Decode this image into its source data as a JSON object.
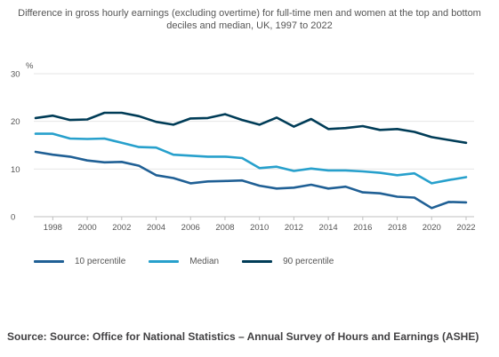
{
  "chart_data": {
    "type": "line",
    "title": "Difference in gross hourly earnings (excluding overtime) for full-time men and women at the top and bottom deciles and median, UK, 1997 to 2022",
    "xlabel": "",
    "ylabel": "%",
    "x": [
      1997,
      1998,
      1999,
      2000,
      2001,
      2002,
      2003,
      2004,
      2005,
      2006,
      2007,
      2008,
      2009,
      2010,
      2011,
      2012,
      2013,
      2014,
      2015,
      2016,
      2017,
      2018,
      2019,
      2020,
      2021,
      2022
    ],
    "xticks": [
      "1998",
      "2000",
      "2002",
      "2004",
      "2006",
      "2008",
      "2010",
      "2012",
      "2014",
      "2016",
      "2018",
      "2020",
      "2022"
    ],
    "xlim": [
      1997,
      2022
    ],
    "yticks": [
      "0",
      "10",
      "20",
      "30"
    ],
    "ylim": [
      0,
      30
    ],
    "grid": true,
    "legend_position": "bottom-left",
    "series": [
      {
        "name": "10 percentile",
        "color": "#206095",
        "values": [
          13.6,
          13.0,
          12.6,
          11.8,
          11.4,
          11.5,
          10.7,
          8.7,
          8.1,
          7.0,
          7.4,
          7.5,
          7.6,
          6.5,
          5.9,
          6.1,
          6.7,
          5.9,
          6.3,
          5.1,
          4.9,
          4.2,
          4.0,
          1.8,
          3.1,
          3.0
        ]
      },
      {
        "name": "Median",
        "color": "#27a0cc",
        "values": [
          17.4,
          17.4,
          16.4,
          16.3,
          16.4,
          15.5,
          14.6,
          14.5,
          13.0,
          12.8,
          12.6,
          12.6,
          12.3,
          10.2,
          10.5,
          9.6,
          10.1,
          9.7,
          9.7,
          9.5,
          9.2,
          8.7,
          9.1,
          7.0,
          7.7,
          8.3
        ]
      },
      {
        "name": "90 percentile",
        "color": "#003c57",
        "values": [
          20.7,
          21.2,
          20.3,
          20.4,
          21.8,
          21.8,
          21.1,
          19.9,
          19.3,
          20.6,
          20.7,
          21.5,
          20.3,
          19.3,
          20.8,
          18.9,
          20.5,
          18.4,
          18.6,
          19.0,
          18.2,
          18.4,
          17.8,
          16.7,
          16.1,
          15.5
        ]
      }
    ]
  },
  "source": "Source: Source: Office for National Statistics – Annual Survey of Hours and Earnings (ASHE)"
}
